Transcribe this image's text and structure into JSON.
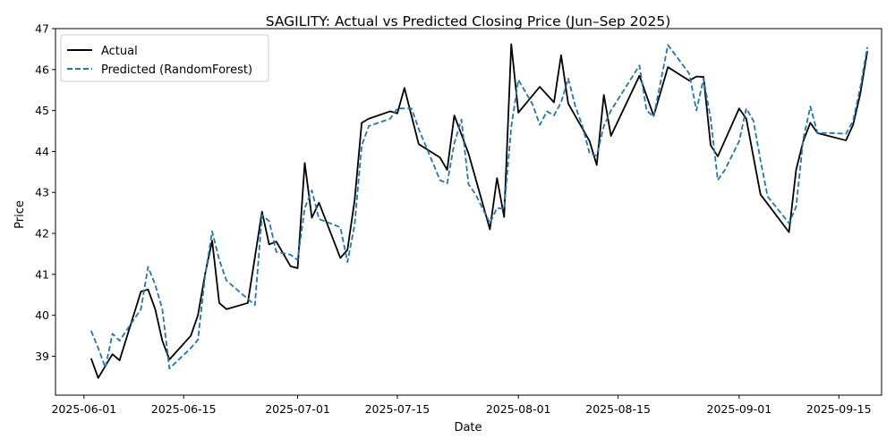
{
  "chart_data": {
    "type": "line",
    "title": "SAGILITY: Actual vs Predicted Closing Price (Jun–Sep 2025)",
    "xlabel": "Date",
    "ylabel": "Price",
    "xlim": [
      "2025-05-28",
      "2025-09-21"
    ],
    "ylim": [
      38.05,
      47.0
    ],
    "x_ticks": [
      "2025-06-01",
      "2025-06-15",
      "2025-07-01",
      "2025-07-15",
      "2025-08-01",
      "2025-08-15",
      "2025-09-01",
      "2025-09-15"
    ],
    "y_ticks": [
      39,
      40,
      41,
      42,
      43,
      44,
      45,
      46,
      47
    ],
    "grid": false,
    "legend_position": "upper-left",
    "series": [
      {
        "name": "Actual",
        "color": "#000000",
        "style": "solid",
        "points": [
          [
            "2025-06-02",
            38.95
          ],
          [
            "2025-06-03",
            38.47
          ],
          [
            "2025-06-05",
            39.05
          ],
          [
            "2025-06-06",
            38.9
          ],
          [
            "2025-06-09",
            40.58
          ],
          [
            "2025-06-10",
            40.63
          ],
          [
            "2025-06-11",
            40.15
          ],
          [
            "2025-06-12",
            39.38
          ],
          [
            "2025-06-13",
            38.92
          ],
          [
            "2025-06-16",
            39.5
          ],
          [
            "2025-06-17",
            40.0
          ],
          [
            "2025-06-18",
            41.0
          ],
          [
            "2025-06-19",
            41.82
          ],
          [
            "2025-06-20",
            40.3
          ],
          [
            "2025-06-21",
            40.15
          ],
          [
            "2025-06-24",
            40.3
          ],
          [
            "2025-06-26",
            42.53
          ],
          [
            "2025-06-27",
            41.73
          ],
          [
            "2025-06-28",
            41.8
          ],
          [
            "2025-06-30",
            41.2
          ],
          [
            "2025-07-01",
            41.15
          ],
          [
            "2025-07-02",
            43.72
          ],
          [
            "2025-07-03",
            42.38
          ],
          [
            "2025-07-04",
            42.75
          ],
          [
            "2025-07-07",
            41.4
          ],
          [
            "2025-07-08",
            41.6
          ],
          [
            "2025-07-09",
            42.8
          ],
          [
            "2025-07-10",
            44.7
          ],
          [
            "2025-07-11",
            44.8
          ],
          [
            "2025-07-14",
            44.98
          ],
          [
            "2025-07-15",
            44.93
          ],
          [
            "2025-07-16",
            45.55
          ],
          [
            "2025-07-18",
            44.18
          ],
          [
            "2025-07-21",
            43.85
          ],
          [
            "2025-07-22",
            43.55
          ],
          [
            "2025-07-23",
            44.88
          ],
          [
            "2025-07-25",
            43.95
          ],
          [
            "2025-07-28",
            42.1
          ],
          [
            "2025-07-29",
            43.35
          ],
          [
            "2025-07-30",
            42.4
          ],
          [
            "2025-07-31",
            46.62
          ],
          [
            "2025-08-01",
            44.95
          ],
          [
            "2025-08-04",
            45.58
          ],
          [
            "2025-08-06",
            45.2
          ],
          [
            "2025-08-07",
            46.35
          ],
          [
            "2025-08-08",
            45.17
          ],
          [
            "2025-08-11",
            44.25
          ],
          [
            "2025-08-12",
            43.67
          ],
          [
            "2025-08-13",
            45.38
          ],
          [
            "2025-08-14",
            44.38
          ],
          [
            "2025-08-18",
            45.85
          ],
          [
            "2025-08-20",
            44.87
          ],
          [
            "2025-08-22",
            46.06
          ],
          [
            "2025-08-25",
            45.73
          ],
          [
            "2025-08-26",
            45.83
          ],
          [
            "2025-08-27",
            45.82
          ],
          [
            "2025-08-28",
            44.15
          ],
          [
            "2025-08-29",
            43.88
          ],
          [
            "2025-09-01",
            45.05
          ],
          [
            "2025-09-02",
            44.8
          ],
          [
            "2025-09-04",
            42.95
          ],
          [
            "2025-09-08",
            42.03
          ],
          [
            "2025-09-09",
            43.55
          ],
          [
            "2025-09-10",
            44.25
          ],
          [
            "2025-09-11",
            44.7
          ],
          [
            "2025-09-12",
            44.45
          ],
          [
            "2025-09-16",
            44.27
          ],
          [
            "2025-09-17",
            44.65
          ],
          [
            "2025-09-18",
            45.4
          ],
          [
            "2025-09-19",
            46.45
          ]
        ]
      },
      {
        "name": "Predicted (RandomForest)",
        "color": "#1f77b4",
        "style": "dashed",
        "points": [
          [
            "2025-06-02",
            39.62
          ],
          [
            "2025-06-03",
            39.2
          ],
          [
            "2025-06-04",
            38.72
          ],
          [
            "2025-06-05",
            39.55
          ],
          [
            "2025-06-06",
            39.38
          ],
          [
            "2025-06-09",
            40.15
          ],
          [
            "2025-06-10",
            41.18
          ],
          [
            "2025-06-11",
            40.75
          ],
          [
            "2025-06-12",
            40.15
          ],
          [
            "2025-06-13",
            38.7
          ],
          [
            "2025-06-16",
            39.2
          ],
          [
            "2025-06-17",
            39.4
          ],
          [
            "2025-06-18",
            40.95
          ],
          [
            "2025-06-19",
            42.05
          ],
          [
            "2025-06-20",
            41.35
          ],
          [
            "2025-06-21",
            40.85
          ],
          [
            "2025-06-23",
            40.55
          ],
          [
            "2025-06-25",
            40.25
          ],
          [
            "2025-06-26",
            42.45
          ],
          [
            "2025-06-27",
            42.3
          ],
          [
            "2025-06-28",
            41.55
          ],
          [
            "2025-06-30",
            41.48
          ],
          [
            "2025-07-01",
            41.35
          ],
          [
            "2025-07-02",
            42.62
          ],
          [
            "2025-07-03",
            43.05
          ],
          [
            "2025-07-04",
            42.35
          ],
          [
            "2025-07-07",
            42.15
          ],
          [
            "2025-07-08",
            41.3
          ],
          [
            "2025-07-09",
            42.2
          ],
          [
            "2025-07-10",
            44.15
          ],
          [
            "2025-07-11",
            44.62
          ],
          [
            "2025-07-14",
            44.8
          ],
          [
            "2025-07-15",
            45.05
          ],
          [
            "2025-07-17",
            45.05
          ],
          [
            "2025-07-18",
            44.55
          ],
          [
            "2025-07-21",
            43.3
          ],
          [
            "2025-07-22",
            43.22
          ],
          [
            "2025-07-23",
            44.2
          ],
          [
            "2025-07-24",
            44.78
          ],
          [
            "2025-07-25",
            43.2
          ],
          [
            "2025-07-26",
            42.95
          ],
          [
            "2025-07-28",
            42.25
          ],
          [
            "2025-07-29",
            42.62
          ],
          [
            "2025-07-30",
            42.6
          ],
          [
            "2025-07-31",
            44.6
          ],
          [
            "2025-08-01",
            45.75
          ],
          [
            "2025-08-03",
            45.15
          ],
          [
            "2025-08-04",
            44.65
          ],
          [
            "2025-08-05",
            44.98
          ],
          [
            "2025-08-06",
            44.88
          ],
          [
            "2025-08-07",
            45.2
          ],
          [
            "2025-08-08",
            45.78
          ],
          [
            "2025-08-09",
            45.1
          ],
          [
            "2025-08-10",
            44.62
          ],
          [
            "2025-08-11",
            43.95
          ],
          [
            "2025-08-12",
            43.9
          ],
          [
            "2025-08-13",
            44.62
          ],
          [
            "2025-08-14",
            45.0
          ],
          [
            "2025-08-18",
            46.1
          ],
          [
            "2025-08-19",
            45.0
          ],
          [
            "2025-08-20",
            44.85
          ],
          [
            "2025-08-22",
            46.6
          ],
          [
            "2025-08-25",
            45.9
          ],
          [
            "2025-08-26",
            45.0
          ],
          [
            "2025-08-27",
            45.78
          ],
          [
            "2025-08-28",
            44.8
          ],
          [
            "2025-08-29",
            43.3
          ],
          [
            "2025-08-30",
            43.55
          ],
          [
            "2025-09-01",
            44.25
          ],
          [
            "2025-09-02",
            45.05
          ],
          [
            "2025-09-03",
            44.75
          ],
          [
            "2025-09-04",
            43.78
          ],
          [
            "2025-09-05",
            42.9
          ],
          [
            "2025-09-08",
            42.25
          ],
          [
            "2025-09-09",
            42.65
          ],
          [
            "2025-09-10",
            44.3
          ],
          [
            "2025-09-11",
            45.1
          ],
          [
            "2025-09-12",
            44.45
          ],
          [
            "2025-09-14",
            44.45
          ],
          [
            "2025-09-16",
            44.43
          ],
          [
            "2025-09-17",
            44.75
          ],
          [
            "2025-09-18",
            45.55
          ],
          [
            "2025-09-19",
            46.55
          ]
        ]
      }
    ]
  }
}
